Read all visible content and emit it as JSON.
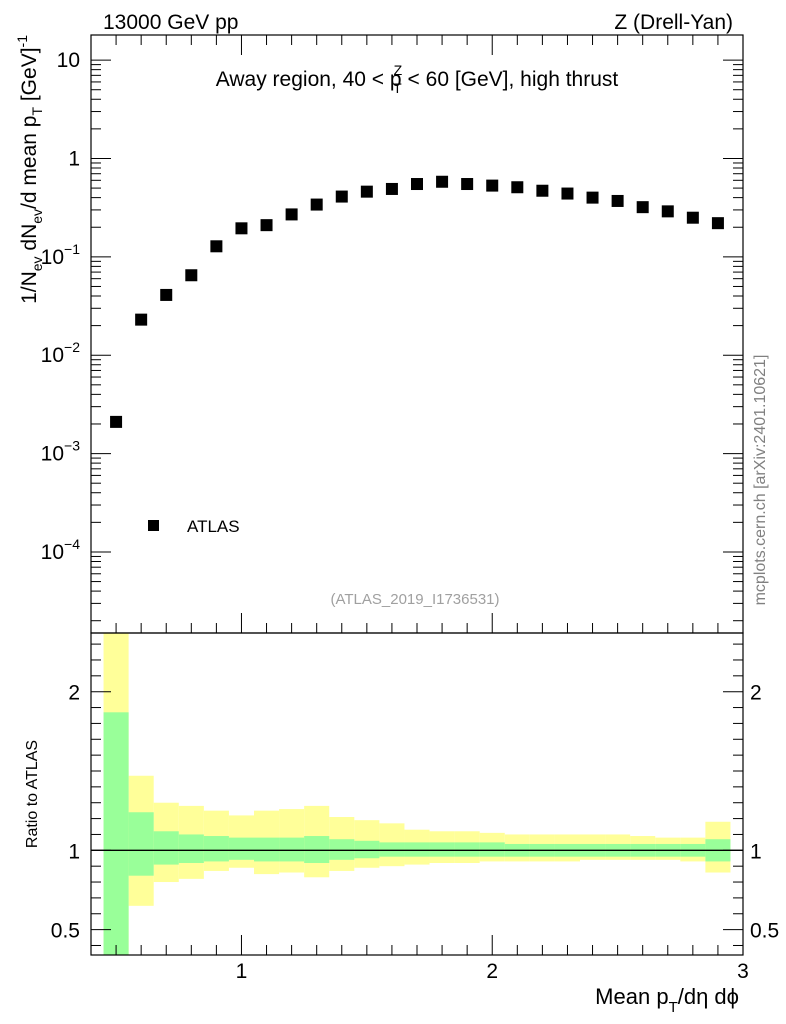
{
  "header": {
    "left": "13000 GeV pp",
    "right": "Z (Drell-Yan)"
  },
  "side_label": "mcplots.cern.ch [arXiv:2401.10621]",
  "chart_data": [
    {
      "type": "scatter",
      "panel": "main",
      "title": "Away region, 40 < p_T^Z < 60 [GeV], high thrust",
      "title_parts": {
        "pre": "Away region, 40 < p",
        "sup": "Z",
        "sub": "T",
        "post": " < 60 [GeV], high thrust"
      },
      "ylabel": "1/N_ev dN_ev/d mean p_T [GeV]^-1",
      "ylabel_parts": {
        "a": "1/N",
        "b": "ev",
        "c": " dN",
        "d": "ev",
        "e": "/d mean p",
        "f": "T",
        "g": " [GeV]",
        "h": "-1"
      },
      "yscale": "log",
      "ylim": [
        1.5e-05,
        18
      ],
      "xlim": [
        0.4,
        3.0
      ],
      "legend": {
        "label": "ATLAS",
        "position": "bottom-left"
      },
      "watermark": "(ATLAS_2019_I1736531)",
      "y_ticks": [
        {
          "value": 10,
          "base": "10",
          "exp": ""
        },
        {
          "value": 1,
          "base": "1",
          "exp": ""
        },
        {
          "value": 0.1,
          "base": "10",
          "exp": "−1"
        },
        {
          "value": 0.01,
          "base": "10",
          "exp": "−2"
        },
        {
          "value": 0.001,
          "base": "10",
          "exp": "−3"
        },
        {
          "value": 0.0001,
          "base": "10",
          "exp": "−4"
        }
      ],
      "series": [
        {
          "name": "ATLAS",
          "x": [
            0.5,
            0.6,
            0.7,
            0.8,
            0.9,
            1.0,
            1.1,
            1.2,
            1.3,
            1.4,
            1.5,
            1.6,
            1.7,
            1.8,
            1.9,
            2.0,
            2.1,
            2.2,
            2.3,
            2.4,
            2.5,
            2.6,
            2.7,
            2.8,
            2.9
          ],
          "y": [
            0.0021,
            0.023,
            0.041,
            0.065,
            0.128,
            0.195,
            0.21,
            0.27,
            0.34,
            0.41,
            0.46,
            0.49,
            0.55,
            0.58,
            0.55,
            0.53,
            0.51,
            0.47,
            0.44,
            0.4,
            0.37,
            0.32,
            0.29,
            0.25,
            0.22
          ]
        }
      ]
    },
    {
      "type": "area",
      "panel": "ratio",
      "ylabel": "Ratio to ATLAS",
      "xlabel": "Mean p_T/dη dϕ",
      "xlabel_parts": {
        "a": "Mean p",
        "b": "T",
        "c": "/dη dϕ"
      },
      "xlim": [
        0.4,
        3.0
      ],
      "ylim": [
        0.34,
        2.37
      ],
      "reference_line": 1,
      "y_ticks": [
        {
          "value": 0.5,
          "label": "0.5"
        },
        {
          "value": 1,
          "label": "1"
        },
        {
          "value": 2,
          "label": "2"
        }
      ],
      "x_ticks": [
        {
          "value": 1,
          "label": "1"
        },
        {
          "value": 2,
          "label": "2"
        },
        {
          "value": 3,
          "label": "3"
        }
      ],
      "colors": {
        "stat": "#99ff99",
        "total": "#ffff99"
      },
      "bands": {
        "edges": [
          0.45,
          0.55,
          0.65,
          0.75,
          0.85,
          0.95,
          1.05,
          1.15,
          1.25,
          1.35,
          1.45,
          1.55,
          1.65,
          1.75,
          1.85,
          1.95,
          2.05,
          2.15,
          2.25,
          2.35,
          2.45,
          2.55,
          2.65,
          2.75,
          2.85,
          2.95
        ],
        "total_low": [
          0.34,
          0.65,
          0.8,
          0.82,
          0.87,
          0.89,
          0.85,
          0.86,
          0.83,
          0.87,
          0.89,
          0.9,
          0.91,
          0.92,
          0.92,
          0.93,
          0.93,
          0.93,
          0.93,
          0.94,
          0.94,
          0.94,
          0.94,
          0.93,
          0.86
        ],
        "total_high": [
          2.37,
          1.47,
          1.3,
          1.28,
          1.25,
          1.22,
          1.25,
          1.26,
          1.28,
          1.21,
          1.19,
          1.17,
          1.13,
          1.12,
          1.12,
          1.11,
          1.1,
          1.1,
          1.1,
          1.1,
          1.1,
          1.09,
          1.08,
          1.08,
          1.18
        ],
        "stat_low": [
          0.34,
          0.84,
          0.91,
          0.92,
          0.93,
          0.94,
          0.93,
          0.93,
          0.92,
          0.94,
          0.95,
          0.96,
          0.96,
          0.96,
          0.96,
          0.96,
          0.96,
          0.96,
          0.96,
          0.96,
          0.96,
          0.96,
          0.96,
          0.96,
          0.93
        ],
        "stat_high": [
          1.87,
          1.24,
          1.12,
          1.1,
          1.09,
          1.08,
          1.08,
          1.08,
          1.09,
          1.07,
          1.06,
          1.05,
          1.05,
          1.05,
          1.05,
          1.05,
          1.04,
          1.04,
          1.04,
          1.04,
          1.04,
          1.04,
          1.04,
          1.04,
          1.07
        ]
      }
    }
  ]
}
